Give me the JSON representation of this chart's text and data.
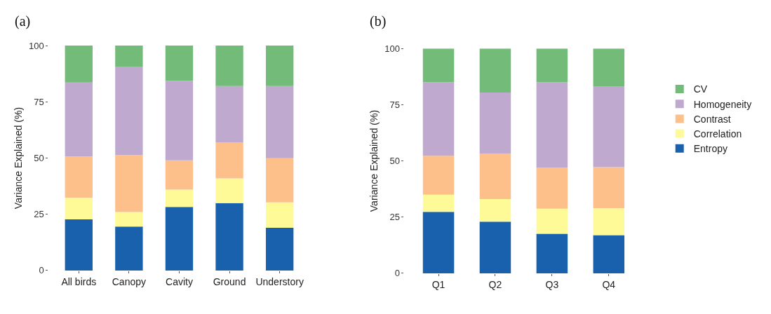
{
  "chart_data": [
    {
      "type": "bar",
      "title": "(a)",
      "ylabel": "Variance Explained (%)",
      "stacked": true,
      "categories": [
        "All birds",
        "Canopy",
        "Cavity",
        "Ground",
        "Understory"
      ],
      "ylim": [
        0,
        100
      ],
      "yticks": [
        0,
        25,
        50,
        75,
        100
      ],
      "series": [
        {
          "color": "#1961ac",
          "values": [
            22.7,
            19.5,
            28.3,
            30,
            19
          ]
        },
        {
          "color": "#fefa98",
          "values": [
            9.6,
            6.5,
            7.7,
            11,
            11.3
          ]
        },
        {
          "color": "#fdc08a",
          "values": [
            18.4,
            25.3,
            13,
            16,
            19.6
          ]
        },
        {
          "color": "#bfa9cf",
          "values": [
            32.9,
            39.4,
            35.4,
            25,
            32.1
          ]
        },
        {
          "color": "#72bb78",
          "values": [
            16.4,
            9.3,
            15.6,
            18,
            18
          ]
        }
      ]
    },
    {
      "type": "bar",
      "title": "(b)",
      "ylabel": "Variance Explained (%)",
      "stacked": true,
      "categories": [
        "Q1",
        "Q2",
        "Q3",
        "Q4"
      ],
      "ylim": [
        0,
        100
      ],
      "yticks": [
        0,
        25,
        50,
        75,
        100
      ],
      "legend": "right",
      "series": [
        {
          "name": "Entropy",
          "color": "#1961ac",
          "values": [
            27.3,
            23,
            17.6,
            17
          ]
        },
        {
          "name": "Correlation",
          "color": "#fefa98",
          "values": [
            7.7,
            10,
            11.1,
            12
          ]
        },
        {
          "name": "Contrast",
          "color": "#fdc08a",
          "values": [
            17.3,
            20.1,
            18.2,
            18.2
          ]
        },
        {
          "name": "Homogeneity",
          "color": "#bfa9cf",
          "values": [
            32.7,
            27.3,
            38.1,
            36
          ]
        },
        {
          "name": "CV",
          "color": "#72bb78",
          "values": [
            15,
            19.6,
            15,
            16.8
          ]
        }
      ]
    }
  ]
}
